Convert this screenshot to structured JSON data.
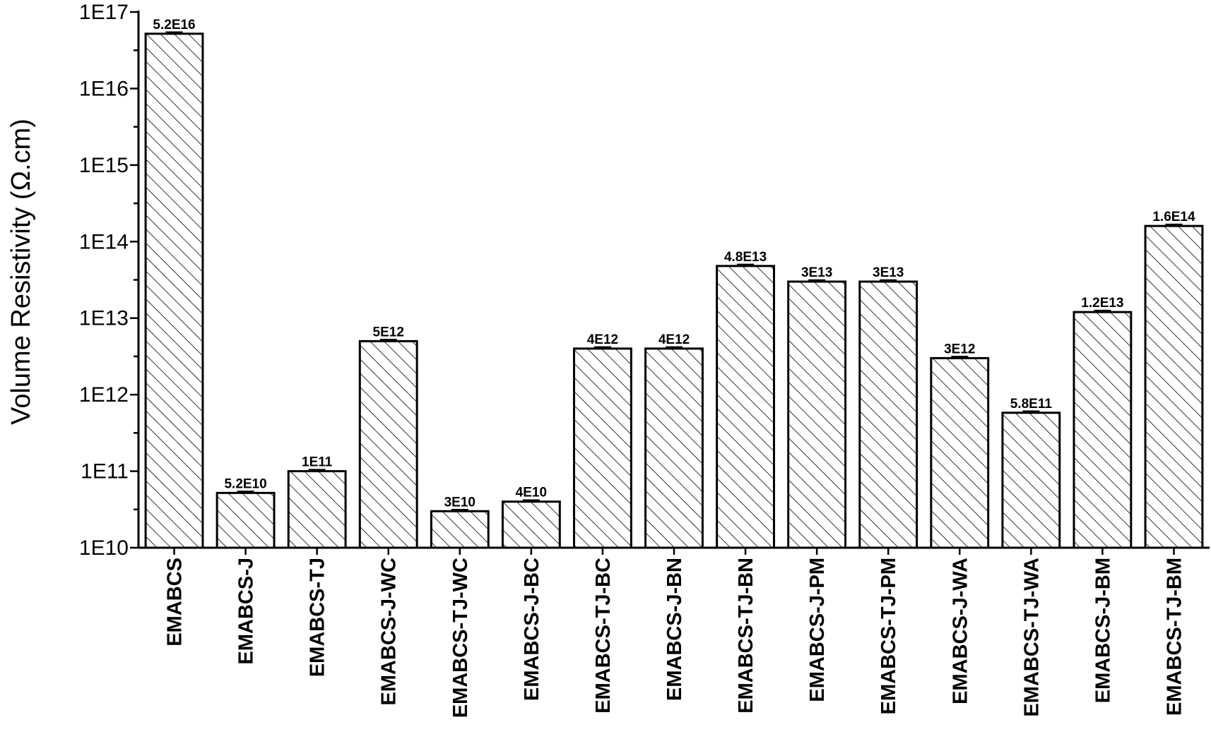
{
  "chart_data": {
    "type": "bar",
    "title": "",
    "xlabel": "",
    "ylabel": "Volume Resistivity (Ω.cm)",
    "y_scale": "log",
    "ylim": [
      10000000000.0,
      1e+17
    ],
    "yticks": [
      {
        "value": 10000000000.0,
        "label": "1E10"
      },
      {
        "value": 100000000000.0,
        "label": "1E11"
      },
      {
        "value": 1000000000000.0,
        "label": "1E12"
      },
      {
        "value": 10000000000000.0,
        "label": "1E13"
      },
      {
        "value": 100000000000000.0,
        "label": "1E14"
      },
      {
        "value": 1000000000000000.0,
        "label": "1E15"
      },
      {
        "value": 1e+16,
        "label": "1E16"
      },
      {
        "value": 1e+17,
        "label": "1E17"
      }
    ],
    "categories": [
      "EMABCS",
      "EMABCS-J",
      "EMABCS-TJ",
      "EMABCS-J-WC",
      "EMABCS-TJ-WC",
      "EMABCS-J-BC",
      "EMABCS-TJ-BC",
      "EMABCS-J-BN",
      "EMABCS-TJ-BN",
      "EMABCS-J-PM",
      "EMABCS-TJ-PM",
      "EMABCS-J-WA",
      "EMABCS-TJ-WA",
      "EMABCS-J-BM",
      "EMABCS-TJ-BM"
    ],
    "values": [
      5.2e+16,
      52000000000.0,
      100000000000.0,
      5000000000000.0,
      30000000000.0,
      40000000000.0,
      4000000000000.0,
      4000000000000.0,
      48000000000000.0,
      30000000000000.0,
      30000000000000.0,
      3000000000000.0,
      580000000000.0,
      12000000000000.0,
      160000000000000.0
    ],
    "data_labels": [
      "5.2E16",
      "5.2E10",
      "1E11",
      "5E12",
      "3E10",
      "4E10",
      "4E12",
      "4E12",
      "4.8E13",
      "3E13",
      "3E13",
      "3E12",
      "5.8E11",
      "1.2E13",
      "1.6E14"
    ],
    "bar_fill": "hatched",
    "grid": false,
    "legend": "none",
    "colors": {
      "bar_stroke": "#000000",
      "bar_fill": "#ffffff",
      "hatch": "#000000"
    }
  }
}
